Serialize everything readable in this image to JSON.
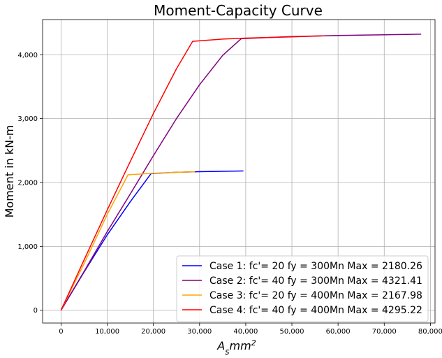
{
  "chart_data": {
    "type": "line",
    "title": "Moment-Capacity Curve",
    "xlabel": "A_s mm^2",
    "ylabel": "Moment  in kN-m",
    "xlim": [
      -4000,
      81000
    ],
    "ylim": [
      -200,
      4550
    ],
    "grid": true,
    "legend_position": "lower-right",
    "x_ticks": [
      0,
      10000,
      20000,
      30000,
      40000,
      50000,
      60000,
      70000,
      80000
    ],
    "x_tick_labels": [
      "0",
      "10,000",
      "20,000",
      "30,000",
      "40,000",
      "50,000",
      "60,000",
      "70,000",
      "80,000"
    ],
    "y_ticks": [
      0,
      1000,
      2000,
      3000,
      4000
    ],
    "y_tick_labels": [
      "0",
      "1,000",
      "2,000",
      "3,000",
      "4,000"
    ],
    "series": [
      {
        "name": "Case 1: fc'= 20 fy = 300Mn Max = 2180.26",
        "color": "#0000ff",
        "points": [
          [
            0,
            0
          ],
          [
            5000,
            600
          ],
          [
            10000,
            1180
          ],
          [
            15000,
            1700
          ],
          [
            19500,
            2140
          ],
          [
            25000,
            2160
          ],
          [
            30000,
            2170
          ],
          [
            35000,
            2175
          ],
          [
            39500,
            2180
          ]
        ]
      },
      {
        "name": "Case 2: fc'= 40 fy = 300Mn Max = 4321.41",
        "color": "#800080",
        "points": [
          [
            0,
            0
          ],
          [
            5000,
            610
          ],
          [
            10000,
            1230
          ],
          [
            15000,
            1820
          ],
          [
            20000,
            2420
          ],
          [
            25000,
            3000
          ],
          [
            30000,
            3530
          ],
          [
            35000,
            3990
          ],
          [
            39000,
            4250
          ],
          [
            45000,
            4270
          ],
          [
            50000,
            4285
          ],
          [
            60000,
            4300
          ],
          [
            70000,
            4313
          ],
          [
            78000,
            4321
          ]
        ]
      },
      {
        "name": "Case 3: fc'= 20 fy = 400Mn Max = 2167.98",
        "color": "#ffa500",
        "points": [
          [
            0,
            0
          ],
          [
            5000,
            730
          ],
          [
            10000,
            1500
          ],
          [
            14500,
            2120
          ],
          [
            20000,
            2145
          ],
          [
            25000,
            2160
          ],
          [
            29000,
            2168
          ]
        ]
      },
      {
        "name": "Case 4: fc'= 40 fy = 400Mn Max = 4295.22",
        "color": "#ff0000",
        "points": [
          [
            0,
            0
          ],
          [
            5000,
            790
          ],
          [
            10000,
            1570
          ],
          [
            15000,
            2330
          ],
          [
            20000,
            3080
          ],
          [
            25000,
            3780
          ],
          [
            28500,
            4210
          ],
          [
            35000,
            4245
          ],
          [
            40000,
            4260
          ],
          [
            50000,
            4280
          ],
          [
            57000,
            4295
          ]
        ]
      }
    ]
  }
}
